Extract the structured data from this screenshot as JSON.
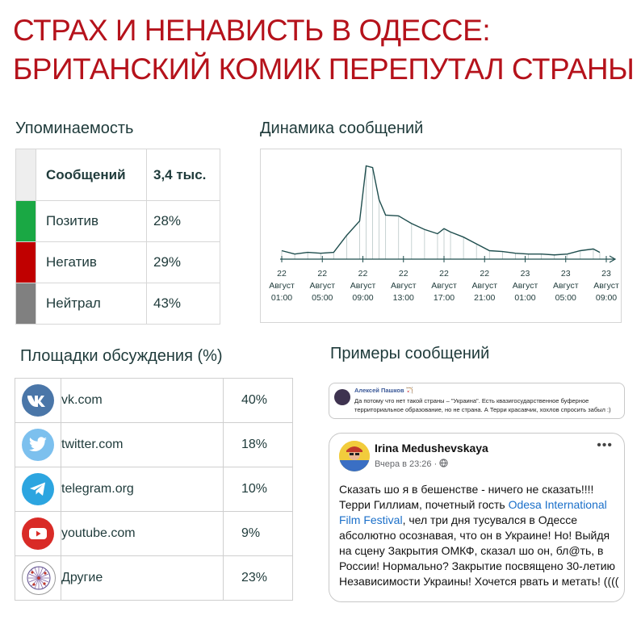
{
  "title": {
    "line1": "СТРАХ И НЕНАВИСТЬ В ОДЕССЕ:",
    "line2": "БРИТАНСКИЙ КОМИК ПЕРЕПУТАЛ СТРАНЫ"
  },
  "mentions": {
    "heading": "Упоминаемость",
    "total_label": "Сообщений",
    "total_value": "3,4 тыс.",
    "rows": [
      {
        "label": "Позитив",
        "value": "28%",
        "color": "#1aa844"
      },
      {
        "label": "Негатив",
        "value": "29%",
        "color": "#c00000"
      },
      {
        "label": "Нейтрал",
        "value": "43%",
        "color": "#808080"
      }
    ],
    "header_color": "#eeeeee"
  },
  "dynamics": {
    "heading": "Динамика сообщений",
    "chart_data": {
      "type": "area",
      "title": "",
      "x_tick_labels": [
        [
          "22",
          "Август",
          "01:00"
        ],
        [
          "22",
          "Август",
          "05:00"
        ],
        [
          "22",
          "Август",
          "09:00"
        ],
        [
          "22",
          "Август",
          "13:00"
        ],
        [
          "22",
          "Август",
          "17:00"
        ],
        [
          "22",
          "Август",
          "21:00"
        ],
        [
          "23",
          "Август",
          "01:00"
        ],
        [
          "23",
          "Август",
          "05:00"
        ],
        [
          "23",
          "Август",
          "09:00"
        ]
      ],
      "x_hours_from_first_tick": [
        0,
        2,
        4,
        6,
        8,
        10,
        12,
        13,
        14,
        15,
        16,
        18,
        20,
        22,
        24,
        25,
        26,
        28,
        30,
        32,
        34,
        36,
        38,
        40,
        42,
        44,
        46,
        48,
        49
      ],
      "values": [
        10,
        6,
        8,
        7,
        8,
        28,
        45,
        110,
        108,
        70,
        52,
        51,
        42,
        35,
        30,
        36,
        32,
        26,
        18,
        10,
        9,
        7,
        6,
        6,
        5,
        6,
        10,
        12,
        8
      ],
      "ylim": [
        0,
        120
      ],
      "grid": false,
      "color": "#1f4e4e"
    }
  },
  "platforms": {
    "heading": "Площадки обсуждения (%)",
    "rows": [
      {
        "name": "vk.com",
        "value": "40%",
        "icon": "vk-icon",
        "color": "#4a76a8"
      },
      {
        "name": "twitter.com",
        "value": "18%",
        "icon": "twitter-icon",
        "color": "#55acee"
      },
      {
        "name": "telegram.org",
        "value": "10%",
        "icon": "telegram-icon",
        "color": "#2ca5e0"
      },
      {
        "name": "youtube.com",
        "value": "9%",
        "icon": "youtube-icon",
        "color": "#e52d27"
      },
      {
        "name": "Другие",
        "value": "23%",
        "icon": "network-icon",
        "color": "#4b3f6b"
      }
    ]
  },
  "examples": {
    "heading": "Примеры сообщений",
    "post1": {
      "author": "Алексей Пашков 🏹",
      "text": "Да потому что нет такой страны – \"Украина\". Есть квазигосударственное буферное территориальное образование, но не страна. А Терри красавчик, хохлов спросить забыл :)"
    },
    "post2": {
      "author": "Irina Medushevskaya",
      "time": "Вчера в 23:26 ·",
      "text_before": "Сказать шо я в бешенстве - ничего не сказать!!!! Терри Гиллиам, почетный гость ",
      "link": "Odesa International Film Festival",
      "text_after": ", чел три дня тусувался в Одессе абсолютно осознавая, что он в Украине! Но! Выйдя на сцену Закрытия ОМКФ, сказал шо он, бл@ть, в России! Нормально? Закрытие посвящено 30-летию Независимости Украины! Хочется рвать и метать! (((("
    }
  }
}
